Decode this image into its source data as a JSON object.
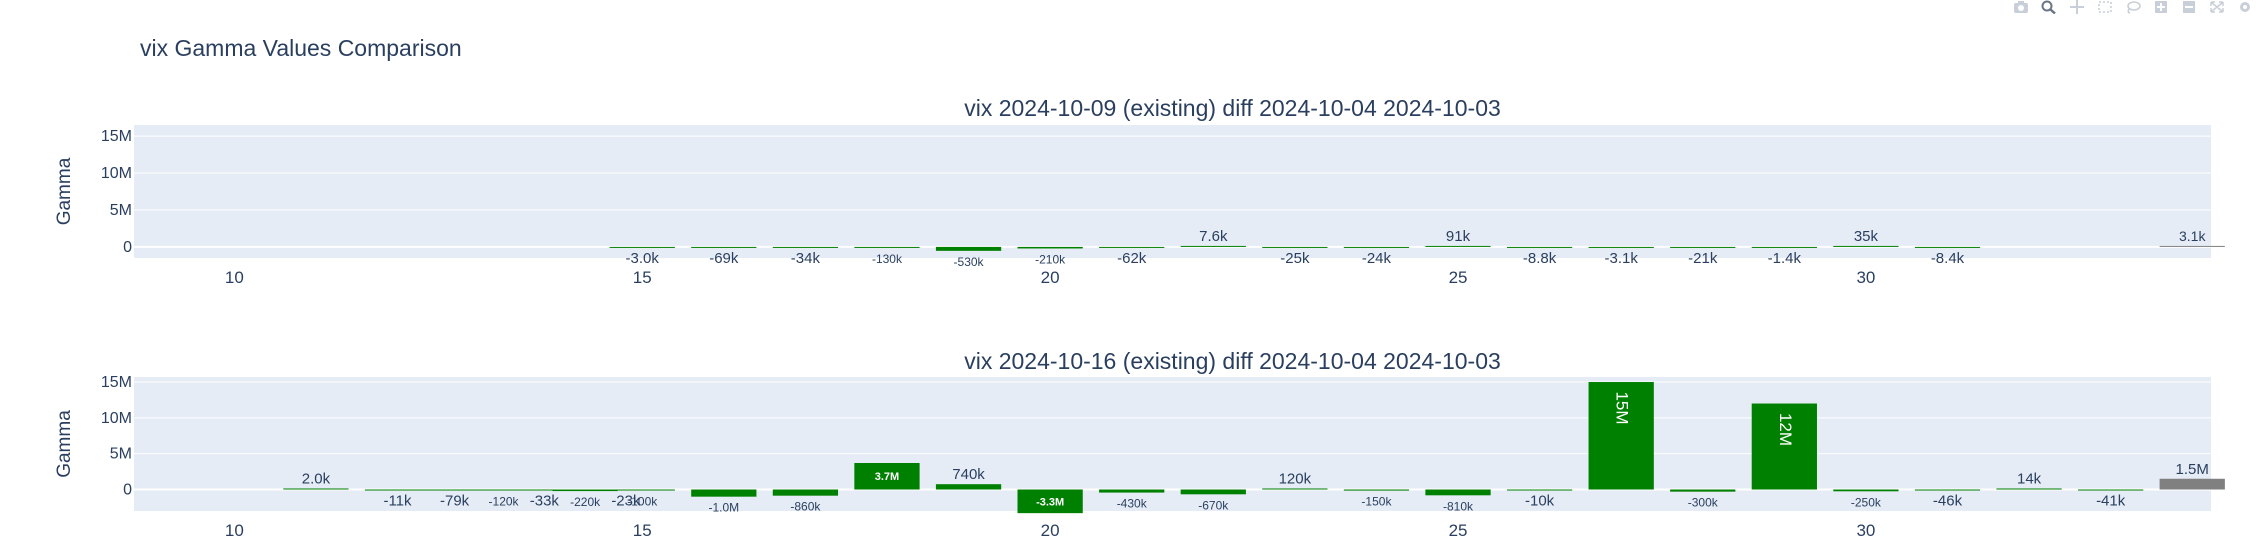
{
  "title": "vix Gamma Values Comparison",
  "colors": {
    "background": "#ffffff",
    "plot_bg": "#e5ecf6",
    "grid": "#ffffff",
    "text": "#2a3f5f",
    "bar_green": "#008000",
    "bar_gray": "#808080",
    "modebar": "#c9cfd8"
  },
  "modebar": [
    "camera-icon",
    "zoom-icon",
    "pan-icon",
    "box-select-icon",
    "lasso-icon",
    "zoom-in-icon",
    "zoom-out-icon",
    "autoscale-icon",
    "reset-axes-icon"
  ],
  "chart_data": [
    {
      "type": "bar",
      "title": "vix 2024-10-09 (existing) diff 2024-10-04 2024-10-03",
      "ylabel": "Gamma",
      "xlabel": "",
      "xlim": [
        8.77,
        34.23
      ],
      "ylim": [
        -1500000,
        16500000
      ],
      "yticks": [
        0,
        5000000,
        10000000,
        15000000
      ],
      "ytick_labels": [
        "0",
        "5M",
        "10M",
        "15M"
      ],
      "xticks": [
        10,
        15,
        20,
        25,
        30
      ],
      "xtick_labels": [
        "10",
        "15",
        "20",
        "25",
        "30"
      ],
      "grid": true,
      "bars": [
        {
          "x": 10,
          "value": 0,
          "label": ""
        },
        {
          "x": 11,
          "value": 0,
          "label": ""
        },
        {
          "x": 12,
          "value": 0,
          "label": ""
        },
        {
          "x": 13,
          "value": 0,
          "label": ""
        },
        {
          "x": 14,
          "value": 0,
          "label": ""
        },
        {
          "x": 15,
          "value": -3000,
          "label": "-3.0k",
          "color": "green"
        },
        {
          "x": 16,
          "value": -69000,
          "label": "-69k",
          "color": "green"
        },
        {
          "x": 17,
          "value": -34000,
          "label": "-34k",
          "color": "green"
        },
        {
          "x": 18,
          "value": -130000,
          "label": "-130k",
          "color": "green"
        },
        {
          "x": 19,
          "value": -530000,
          "label": "-530k",
          "color": "green"
        },
        {
          "x": 20,
          "value": -210000,
          "label": "-210k",
          "color": "green"
        },
        {
          "x": 21,
          "value": -62000,
          "label": "-62k",
          "color": "green"
        },
        {
          "x": 22,
          "value": 7600,
          "label": "7.6k",
          "color": "green"
        },
        {
          "x": 23,
          "value": -25000,
          "label": "-25k",
          "color": "green"
        },
        {
          "x": 24,
          "value": -24000,
          "label": "-24k",
          "color": "green"
        },
        {
          "x": 25,
          "value": 91000,
          "label": "91k",
          "color": "green"
        },
        {
          "x": 26,
          "value": -8800,
          "label": "-8.8k",
          "color": "green"
        },
        {
          "x": 27,
          "value": -3100,
          "label": "-3.1k",
          "color": "green"
        },
        {
          "x": 28,
          "value": -21000,
          "label": "-21k",
          "color": "green"
        },
        {
          "x": 29,
          "value": -1400,
          "label": "-1.4k",
          "color": "green"
        },
        {
          "x": 30,
          "value": 35000,
          "label": "35k",
          "color": "green"
        },
        {
          "x": 31,
          "value": -8400,
          "label": "-8.4k",
          "color": "green"
        },
        {
          "x": 32,
          "value": 0,
          "label": ""
        },
        {
          "x": 33,
          "value": 0,
          "label": ""
        },
        {
          "x": 34,
          "value": 3100,
          "label": "3.1k",
          "color": "gray"
        }
      ]
    },
    {
      "type": "bar",
      "title": "vix 2024-10-16 (existing) diff 2024-10-04 2024-10-03",
      "ylabel": "Gamma",
      "xlabel": "",
      "xlim": [
        8.77,
        34.23
      ],
      "ylim": [
        -3000000,
        15700000
      ],
      "yticks": [
        0,
        5000000,
        10000000,
        15000000
      ],
      "ytick_labels": [
        "0",
        "5M",
        "10M",
        "15M"
      ],
      "xticks": [
        10,
        15,
        20,
        25,
        30
      ],
      "xtick_labels": [
        "10",
        "15",
        "20",
        "25",
        "30"
      ],
      "grid": true,
      "bars": [
        {
          "x": 10,
          "value": 0,
          "label": ""
        },
        {
          "x": 11,
          "value": 2000,
          "label": "2.0k",
          "color": "green"
        },
        {
          "x": 12,
          "value": -11000,
          "label": "-11k",
          "color": "green"
        },
        {
          "x": 12.7,
          "value": -79000,
          "label": "-79k",
          "color": "green"
        },
        {
          "x": 13.3,
          "value": -120000,
          "label": "-120k",
          "color": "green"
        },
        {
          "x": 13.8,
          "value": -33000,
          "label": "-33k",
          "color": "green"
        },
        {
          "x": 14.3,
          "value": -220000,
          "label": "-220k",
          "color": "green"
        },
        {
          "x": 14.8,
          "value": -23000,
          "label": "-23k",
          "color": "green"
        },
        {
          "x": 15,
          "value": -100000,
          "label": "-100k",
          "color": "green"
        },
        {
          "x": 16,
          "value": -1000000,
          "label": "-1.0M",
          "color": "green"
        },
        {
          "x": 17,
          "value": -860000,
          "label": "-860k",
          "color": "green"
        },
        {
          "x": 18,
          "value": 3700000,
          "label": "3.7M",
          "color": "green"
        },
        {
          "x": 19,
          "value": 740000,
          "label": "740k",
          "color": "green"
        },
        {
          "x": 20,
          "value": -3300000,
          "label": "-3.3M",
          "color": "green"
        },
        {
          "x": 21,
          "value": -430000,
          "label": "-430k",
          "color": "green"
        },
        {
          "x": 22,
          "value": -670000,
          "label": "-670k",
          "color": "green"
        },
        {
          "x": 23,
          "value": 120000,
          "label": "120k",
          "color": "green"
        },
        {
          "x": 24,
          "value": -150000,
          "label": "-150k",
          "color": "green"
        },
        {
          "x": 25,
          "value": -810000,
          "label": "-810k",
          "color": "green"
        },
        {
          "x": 26,
          "value": -10000,
          "label": "-10k",
          "color": "green"
        },
        {
          "x": 27,
          "value": 15000000,
          "label": "15M",
          "color": "green"
        },
        {
          "x": 28,
          "value": -300000,
          "label": "-300k",
          "color": "green"
        },
        {
          "x": 29,
          "value": 12000000,
          "label": "12M",
          "color": "green"
        },
        {
          "x": 30,
          "value": -250000,
          "label": "-250k",
          "color": "green"
        },
        {
          "x": 31,
          "value": -46000,
          "label": "-46k",
          "color": "green"
        },
        {
          "x": 32,
          "value": 14000,
          "label": "14k",
          "color": "green"
        },
        {
          "x": 33,
          "value": -41000,
          "label": "-41k",
          "color": "green"
        },
        {
          "x": 34,
          "value": 1500000,
          "label": "1.5M",
          "color": "gray"
        }
      ]
    }
  ]
}
